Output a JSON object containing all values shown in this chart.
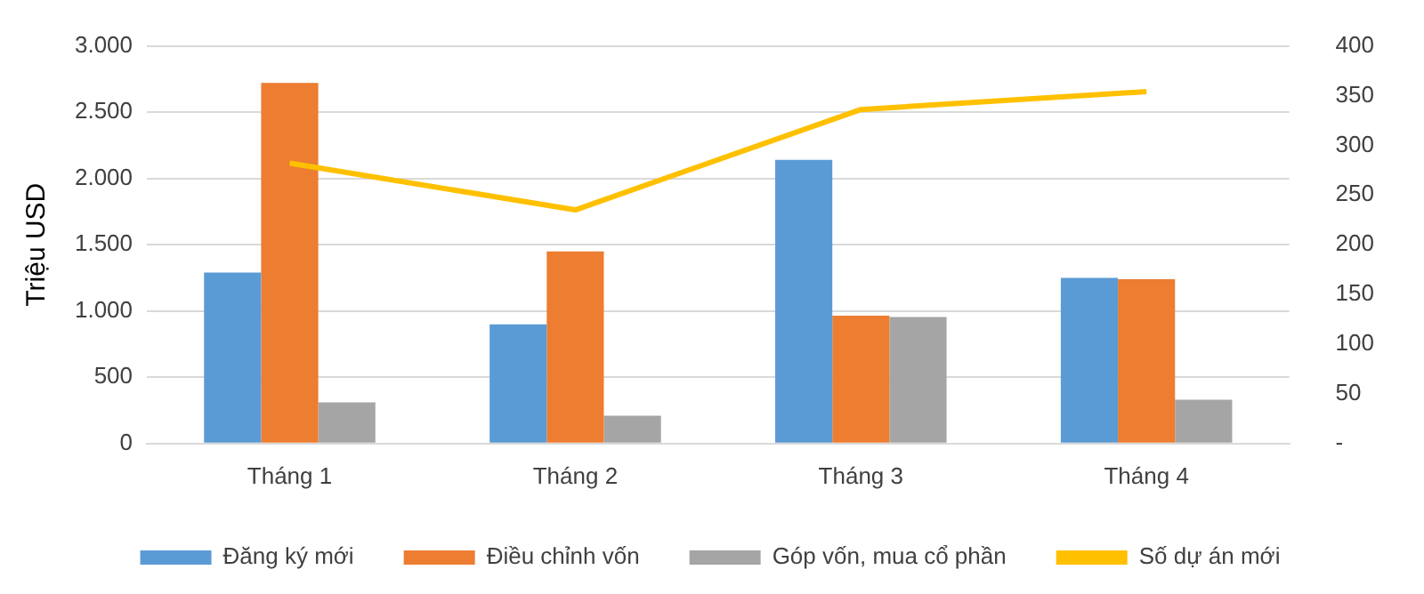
{
  "chart_data": {
    "type": "bar",
    "ylabel": "Triệu USD",
    "categories": [
      "Tháng 1",
      "Tháng 2",
      "Tháng 3",
      "Tháng 4"
    ],
    "series": [
      {
        "name": "Đăng ký mới",
        "color": "#5b9bd5",
        "values": [
          1290,
          900,
          2140,
          1250
        ]
      },
      {
        "name": "Điều chỉnh vốn",
        "color": "#ed7d31",
        "values": [
          2720,
          1450,
          965,
          1240
        ]
      },
      {
        "name": "Góp vốn, mua cổ phần",
        "color": "#a5a5a5",
        "values": [
          310,
          210,
          955,
          330
        ]
      },
      {
        "name": "Số dự án mới",
        "type": "line",
        "axis": "y2",
        "color": "#ffc000",
        "values": [
          282,
          235,
          336,
          354
        ],
        "marker": "none"
      }
    ],
    "ylim": [
      0,
      3000
    ],
    "yticks": [
      {
        "value": 0,
        "label": "0"
      },
      {
        "value": 500,
        "label": "500"
      },
      {
        "value": 1000,
        "label": "1.000"
      },
      {
        "value": 1500,
        "label": "1.500"
      },
      {
        "value": 2000,
        "label": "2.000"
      },
      {
        "value": 2500,
        "label": "2.500"
      },
      {
        "value": 3000,
        "label": "3.000"
      }
    ],
    "y2lim": [
      0,
      400
    ],
    "y2ticks": [
      {
        "value": 0,
        "label": "-"
      },
      50,
      100,
      150,
      200,
      250,
      300,
      350,
      400
    ],
    "grid": "y",
    "legend": "bottom"
  }
}
